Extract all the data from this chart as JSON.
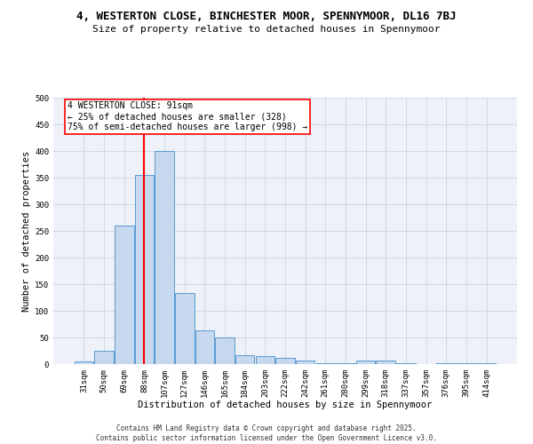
{
  "title_line1": "4, WESTERTON CLOSE, BINCHESTER MOOR, SPENNYMOOR, DL16 7BJ",
  "title_line2": "Size of property relative to detached houses in Spennymoor",
  "xlabel": "Distribution of detached houses by size in Spennymoor",
  "ylabel": "Number of detached properties",
  "categories": [
    "31sqm",
    "50sqm",
    "69sqm",
    "88sqm",
    "107sqm",
    "127sqm",
    "146sqm",
    "165sqm",
    "184sqm",
    "203sqm",
    "222sqm",
    "242sqm",
    "261sqm",
    "280sqm",
    "299sqm",
    "318sqm",
    "337sqm",
    "357sqm",
    "376sqm",
    "395sqm",
    "414sqm"
  ],
  "values": [
    5,
    25,
    260,
    355,
    400,
    133,
    63,
    50,
    17,
    15,
    12,
    6,
    1,
    1,
    6,
    6,
    1,
    0,
    1,
    1,
    2
  ],
  "bar_color": "#c5d8ed",
  "bar_edge_color": "#5b9bd5",
  "red_line_x": 3.0,
  "annotation_text": "4 WESTERTON CLOSE: 91sqm\n← 25% of detached houses are smaller (328)\n75% of semi-detached houses are larger (998) →",
  "annotation_box_color": "white",
  "annotation_box_edge": "red",
  "ylim": [
    0,
    500
  ],
  "yticks": [
    0,
    50,
    100,
    150,
    200,
    250,
    300,
    350,
    400,
    450,
    500
  ],
  "grid_color": "#d0d8e8",
  "background_color": "#eef2f8",
  "footer_line1": "Contains HM Land Registry data © Crown copyright and database right 2025.",
  "footer_line2": "Contains public sector information licensed under the Open Government Licence v3.0.",
  "title_fontsize": 9,
  "subtitle_fontsize": 8,
  "tick_fontsize": 6.5,
  "xlabel_fontsize": 7.5,
  "ylabel_fontsize": 7.5,
  "annotation_fontsize": 7,
  "footer_fontsize": 5.5
}
